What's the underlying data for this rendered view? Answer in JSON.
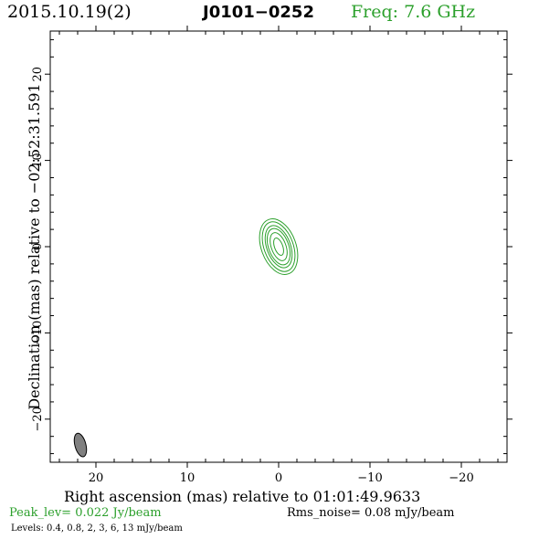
{
  "header": {
    "date": "2015.10.19(2)",
    "source": "J0101−0252",
    "frequency": "Freq: 7.6 GHz"
  },
  "footer": {
    "peak_level": "Peak_lev=  0.022 Jy/beam",
    "rms_noise": "Rms_noise= 0.08 mJy/beam",
    "levels": "Levels: 0.4, 0.8,   2,   3,   6,  13 mJy/beam"
  },
  "colors": {
    "contour": "#2ca02c",
    "beam_fill": "#808080",
    "axis": "#000000",
    "freq_text": "#2ca02c"
  },
  "chart_data": {
    "type": "contour",
    "title": "J0101−0252",
    "xlabel": "Right ascension (mas) relative to 01:01:49.9633",
    "ylabel": "Declination (mas) relative to −02:52:31.591",
    "xlim": [
      25,
      -25
    ],
    "ylim": [
      -25,
      25
    ],
    "x_ticks": [
      20,
      10,
      0,
      -10,
      -20
    ],
    "x_tick_labels": [
      "20",
      "10",
      "0",
      "−10",
      "−20"
    ],
    "y_ticks": [
      20,
      10,
      0,
      -10,
      -20
    ],
    "y_tick_labels": [
      "20",
      "10",
      "0",
      "−10",
      "−20"
    ],
    "x_minor_step": 2,
    "y_minor_step": 2,
    "contour_levels_mJy": [
      0.4,
      0.8,
      2,
      3,
      6,
      13
    ],
    "contour_center": [
      0.0,
      0.0
    ],
    "contours": [
      {
        "level": 0.4,
        "a": 1.9,
        "b": 3.35,
        "pa_deg": -20
      },
      {
        "level": 0.8,
        "a": 1.6,
        "b": 3.0,
        "pa_deg": -20
      },
      {
        "level": 2,
        "a": 1.3,
        "b": 2.55,
        "pa_deg": -20
      },
      {
        "level": 3,
        "a": 1.1,
        "b": 2.2,
        "pa_deg": -20
      },
      {
        "level": 6,
        "a": 0.8,
        "b": 1.7,
        "pa_deg": -20
      },
      {
        "level": 13,
        "a": 0.45,
        "b": 1.05,
        "pa_deg": -20
      }
    ],
    "beam": {
      "x": 21.7,
      "y": -23.0,
      "major": 2.8,
      "minor": 1.2,
      "pa_deg": -15
    },
    "grid": false
  }
}
